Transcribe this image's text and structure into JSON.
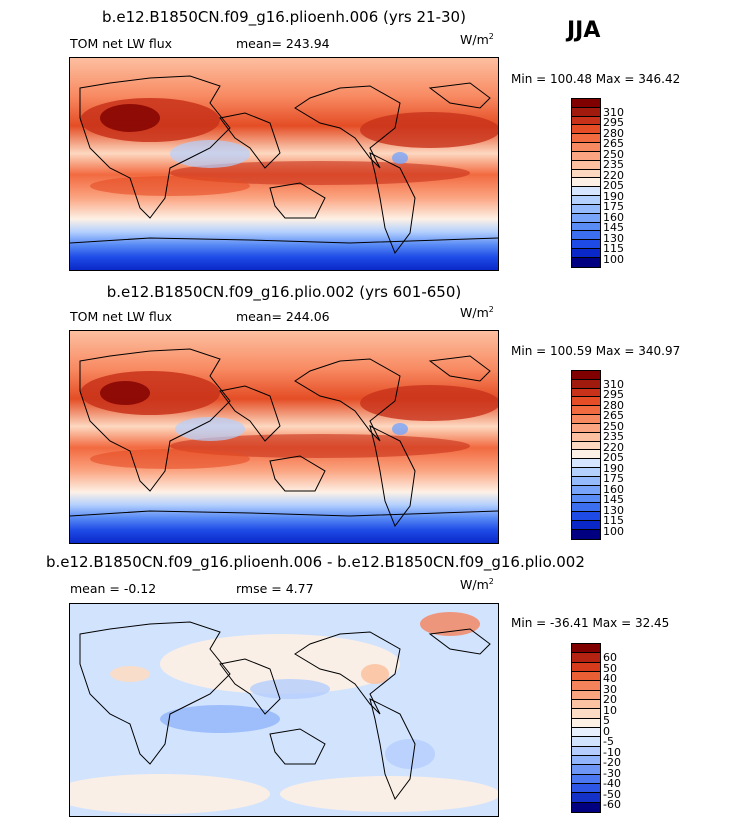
{
  "season": "JJA",
  "colors": {
    "abs_scale": [
      "#000080",
      "#0a28c8",
      "#1e4be6",
      "#3c6ef0",
      "#5a8cf5",
      "#78a5fa",
      "#96bbfc",
      "#b4d0fd",
      "#d6e6fe",
      "#fdf1e6",
      "#fdd8c0",
      "#fcbfa0",
      "#fba582",
      "#f88a62",
      "#f26a40",
      "#e44d25",
      "#c8321a",
      "#a01a0e",
      "#800000"
    ],
    "diff_scale": [
      "#000080",
      "#1432c8",
      "#2d55e6",
      "#4b78f0",
      "#6e96f5",
      "#91b4fa",
      "#b4cdfc",
      "#d2e3fe",
      "#e8f0fe",
      "#fdf0e4",
      "#fcdcc5",
      "#fbc3a2",
      "#f9a57f",
      "#f4825a",
      "#eb5f35",
      "#d63c1c",
      "#b42212",
      "#800000"
    ]
  },
  "panels": [
    {
      "title": "b.e12.B1850CN.f09_g16.plioenh.006 (yrs 21-30)",
      "left_label": "TOM net LW flux",
      "stat_label": "mean= 243.94",
      "unit": "W/m",
      "unit_sup": "2",
      "minmax": "Min = 100.48 Max = 346.42",
      "levels": [
        "310",
        "295",
        "280",
        "265",
        "250",
        "235",
        "220",
        "205",
        "190",
        "175",
        "160",
        "145",
        "130",
        "115",
        "100"
      ]
    },
    {
      "title": "b.e12.B1850CN.f09_g16.plio.002 (yrs 601-650)",
      "left_label": "TOM net LW flux",
      "stat_label": "mean= 244.06",
      "unit": "W/m",
      "unit_sup": "2",
      "minmax": "Min = 100.59 Max = 340.97",
      "levels": [
        "310",
        "295",
        "280",
        "265",
        "250",
        "235",
        "220",
        "205",
        "190",
        "175",
        "160",
        "145",
        "130",
        "115",
        "100"
      ]
    },
    {
      "title": "b.e12.B1850CN.f09_g16.plioenh.006 - b.e12.B1850CN.f09_g16.plio.002",
      "left_label": "mean =  -0.12",
      "stat_label": "rmse =   4.77",
      "unit": "W/m",
      "unit_sup": "2",
      "minmax": "Min = -36.41 Max =  32.45",
      "levels": [
        "60",
        "50",
        "40",
        "30",
        "20",
        "10",
        "5",
        "0",
        "-5",
        "-10",
        "-20",
        "-30",
        "-40",
        "-50",
        "-60"
      ]
    }
  ],
  "chart_data": [
    {
      "type": "heatmap",
      "title": "b.e12.B1850CN.f09_g16.plioenh.006 (yrs 21-30)",
      "variable": "TOM net LW flux",
      "units": "W/m2",
      "mean": 243.94,
      "min": 100.48,
      "max": 346.42,
      "contour_levels": [
        100,
        115,
        130,
        145,
        160,
        175,
        190,
        205,
        220,
        235,
        250,
        265,
        280,
        295,
        310
      ]
    },
    {
      "type": "heatmap",
      "title": "b.e12.B1850CN.f09_g16.plio.002 (yrs 601-650)",
      "variable": "TOM net LW flux",
      "units": "W/m2",
      "mean": 244.06,
      "min": 100.59,
      "max": 340.97,
      "contour_levels": [
        100,
        115,
        130,
        145,
        160,
        175,
        190,
        205,
        220,
        235,
        250,
        265,
        280,
        295,
        310
      ]
    },
    {
      "type": "heatmap",
      "title": "b.e12.B1850CN.f09_g16.plioenh.006 - b.e12.B1850CN.f09_g16.plio.002",
      "units": "W/m2",
      "mean": -0.12,
      "rmse": 4.77,
      "min": -36.41,
      "max": 32.45,
      "contour_levels": [
        -60,
        -50,
        -40,
        -30,
        -20,
        -10,
        -5,
        0,
        5,
        10,
        20,
        30,
        40,
        50,
        60
      ]
    }
  ]
}
